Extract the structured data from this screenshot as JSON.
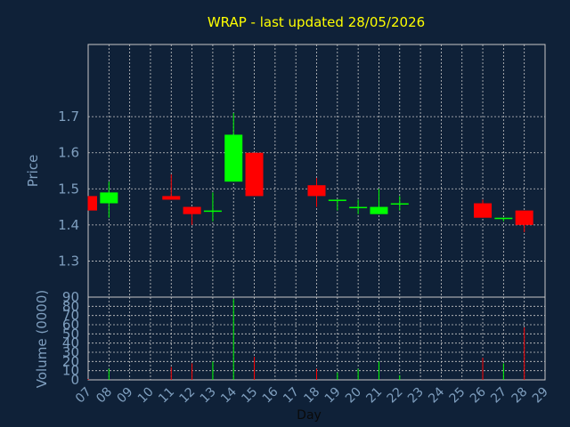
{
  "title": "WRAP - last updated 28/05/2026",
  "colors": {
    "background": "#0f2138",
    "title": "#ffff00",
    "axis_text": "#7f9fbf",
    "grid": "#c8c8c8",
    "up": "#00ff00",
    "down": "#ff0000"
  },
  "chart_data": [
    {
      "type": "candlestick",
      "ylabel": "Price",
      "ylim": [
        1.2,
        1.9
      ],
      "y_ticks": [
        "1.3",
        "1.4",
        "1.5",
        "1.6",
        "1.7"
      ],
      "y_tick_values": [
        1.3,
        1.4,
        1.5,
        1.6,
        1.7
      ],
      "grid": true,
      "candles": [
        {
          "day": "07",
          "open": 1.48,
          "high": 1.48,
          "low": 1.44,
          "close": 1.44
        },
        {
          "day": "08",
          "open": 1.46,
          "high": 1.52,
          "low": 1.42,
          "close": 1.49
        },
        {
          "day": "11",
          "open": 1.48,
          "high": 1.54,
          "low": 1.47,
          "close": 1.47
        },
        {
          "day": "12",
          "open": 1.45,
          "high": 1.45,
          "low": 1.4,
          "close": 1.43
        },
        {
          "day": "13",
          "open": 1.44,
          "high": 1.49,
          "low": 1.41,
          "close": 1.44
        },
        {
          "day": "14",
          "open": 1.52,
          "high": 1.71,
          "low": 1.52,
          "close": 1.65
        },
        {
          "day": "15",
          "open": 1.6,
          "high": 1.6,
          "low": 1.48,
          "close": 1.48
        },
        {
          "day": "18",
          "open": 1.51,
          "high": 1.53,
          "low": 1.45,
          "close": 1.48
        },
        {
          "day": "19",
          "open": 1.47,
          "high": 1.47,
          "low": 1.44,
          "close": 1.47
        },
        {
          "day": "20",
          "open": 1.45,
          "high": 1.47,
          "low": 1.43,
          "close": 1.45
        },
        {
          "day": "21",
          "open": 1.43,
          "high": 1.5,
          "low": 1.43,
          "close": 1.45
        },
        {
          "day": "22",
          "open": 1.46,
          "high": 1.48,
          "low": 1.44,
          "close": 1.46
        },
        {
          "day": "26",
          "open": 1.46,
          "high": 1.47,
          "low": 1.42,
          "close": 1.42
        },
        {
          "day": "27",
          "open": 1.42,
          "high": 1.42,
          "low": 1.41,
          "close": 1.42
        },
        {
          "day": "28",
          "open": 1.44,
          "high": 1.44,
          "low": 1.38,
          "close": 1.4
        }
      ]
    },
    {
      "type": "bar",
      "ylabel": "Volume (0000)",
      "xlabel": "Day",
      "ylim": [
        0,
        90
      ],
      "y_ticks": [
        "0",
        "10",
        "20",
        "30",
        "40",
        "50",
        "60",
        "70",
        "80",
        "90"
      ],
      "y_tick_values": [
        0,
        10,
        20,
        30,
        40,
        50,
        60,
        70,
        80,
        90
      ],
      "categories": [
        "07",
        "08",
        "09",
        "10",
        "11",
        "12",
        "13",
        "14",
        "15",
        "16",
        "17",
        "18",
        "19",
        "20",
        "21",
        "22",
        "23",
        "24",
        "25",
        "26",
        "27",
        "28",
        "29"
      ],
      "values": [
        {
          "day": "07",
          "value": 1,
          "dir": "down"
        },
        {
          "day": "08",
          "value": 12,
          "dir": "up"
        },
        {
          "day": "11",
          "value": 14,
          "dir": "down"
        },
        {
          "day": "12",
          "value": 18,
          "dir": "down"
        },
        {
          "day": "13",
          "value": 20,
          "dir": "up"
        },
        {
          "day": "14",
          "value": 88,
          "dir": "up"
        },
        {
          "day": "15",
          "value": 25,
          "dir": "down"
        },
        {
          "day": "18",
          "value": 12,
          "dir": "down"
        },
        {
          "day": "19",
          "value": 8,
          "dir": "up"
        },
        {
          "day": "20",
          "value": 12,
          "dir": "up"
        },
        {
          "day": "21",
          "value": 20,
          "dir": "up"
        },
        {
          "day": "22",
          "value": 5,
          "dir": "up"
        },
        {
          "day": "26",
          "value": 24,
          "dir": "down"
        },
        {
          "day": "27",
          "value": 18,
          "dir": "up"
        },
        {
          "day": "28",
          "value": 57,
          "dir": "down"
        }
      ]
    }
  ]
}
